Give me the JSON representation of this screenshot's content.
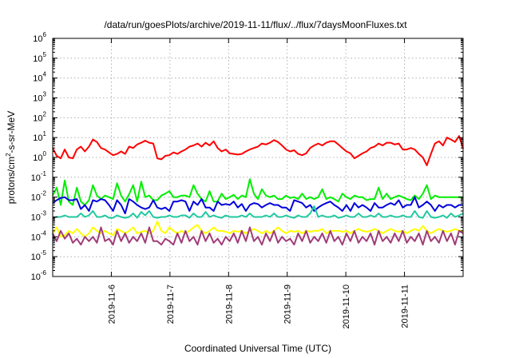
{
  "chart_data": {
    "type": "line",
    "title": "/data/run/goesPlots/archive/2019-11-11/flux/../flux/7daysMoonFluxes.txt",
    "xlabel": "Coordinated Universal Time (UTC)",
    "ylabel_parts": [
      "protons/cm",
      "2",
      "-s-sr-MeV"
    ],
    "yscale": "log",
    "ylim_exponents": [
      -6,
      6
    ],
    "ytick_base": "10",
    "ytick_exponents": [
      "-6",
      "-5",
      "-4",
      "-3",
      "-2",
      "-1",
      "0",
      "1",
      "2",
      "3",
      "4",
      "5",
      "6"
    ],
    "x_start": "2019-11-05T00:00",
    "x_end": "2019-11-12T00:00",
    "xticks": [
      "2019-11-6",
      "2019-11-7",
      "2019-11-8",
      "2019-11-9",
      "2019-11-10",
      "2019-11-11"
    ],
    "grid": true,
    "series": [
      {
        "color": "#ff0000",
        "values": [
          3.0,
          1.2,
          0.9,
          2.5,
          1.0,
          0.9,
          2.5,
          3.5,
          2.0,
          3.5,
          8.0,
          6.0,
          3.0,
          2.5,
          1.8,
          1.3,
          1.5,
          2.0,
          1.5,
          3.5,
          3.0,
          4.5,
          5.5,
          7.0,
          5.5,
          5.0,
          0.9,
          0.8,
          1.2,
          1.3,
          1.8,
          1.5,
          2.0,
          2.5,
          3.5,
          4.0,
          5.0,
          3.5,
          5.5,
          4.0,
          6.5,
          3.0,
          2.0,
          2.5,
          1.6,
          1.5,
          1.4,
          1.5,
          2.0,
          2.5,
          3.0,
          3.5,
          5.0,
          4.5,
          5.5,
          7.5,
          6.0,
          4.0,
          2.5,
          2.0,
          2.3,
          1.5,
          1.3,
          1.6,
          3.0,
          4.0,
          5.0,
          4.0,
          5.5,
          6.5,
          6.5,
          4.5,
          3.0,
          2.0,
          1.6,
          0.9,
          1.2,
          1.6,
          2.0,
          3.0,
          3.5,
          5.0,
          4.0,
          5.5,
          5.5,
          4.5,
          5.0,
          2.5,
          2.5,
          3.0,
          2.5,
          1.5,
          1.0,
          0.4,
          1.5,
          5.0,
          6.5,
          4.0,
          10.0,
          8.0,
          6.0,
          12.0,
          2.8
        ]
      },
      {
        "color": "#00ee00",
        "values": [
          0.012,
          0.03,
          0.004,
          0.07,
          0.006,
          0.004,
          0.03,
          0.006,
          0.004,
          0.007,
          0.04,
          0.012,
          0.008,
          0.012,
          0.01,
          0.008,
          0.05,
          0.012,
          0.006,
          0.014,
          0.04,
          0.006,
          0.06,
          0.01,
          0.012,
          0.007,
          0.007,
          0.012,
          0.015,
          0.02,
          0.01,
          0.01,
          0.012,
          0.012,
          0.01,
          0.04,
          0.015,
          0.008,
          0.006,
          0.02,
          0.006,
          0.006,
          0.015,
          0.008,
          0.01,
          0.013,
          0.008,
          0.012,
          0.01,
          0.08,
          0.015,
          0.008,
          0.025,
          0.012,
          0.01,
          0.012,
          0.008,
          0.008,
          0.012,
          0.009,
          0.01,
          0.008,
          0.015,
          0.008,
          0.01,
          0.008,
          0.01,
          0.025,
          0.008,
          0.01,
          0.008,
          0.006,
          0.015,
          0.01,
          0.008,
          0.012,
          0.01,
          0.01,
          0.007,
          0.008,
          0.008,
          0.03,
          0.008,
          0.015,
          0.008,
          0.01,
          0.012,
          0.01,
          0.008,
          0.007,
          0.012,
          0.008,
          0.015,
          0.04,
          0.008,
          0.012,
          0.01,
          0.01,
          0.01,
          0.01,
          0.01,
          0.01,
          0.01
        ]
      },
      {
        "color": "#0000dd",
        "values": [
          0.005,
          0.007,
          0.009,
          0.01,
          0.007,
          0.007,
          0.008,
          0.0025,
          0.004,
          0.002,
          0.007,
          0.006,
          0.008,
          0.007,
          0.004,
          0.002,
          0.007,
          0.004,
          0.0015,
          0.008,
          0.006,
          0.004,
          0.003,
          0.0025,
          0.003,
          0.007,
          0.003,
          0.0025,
          0.003,
          0.002,
          0.006,
          0.006,
          0.007,
          0.006,
          0.002,
          0.006,
          0.004,
          0.008,
          0.003,
          0.003,
          0.002,
          0.006,
          0.004,
          0.0045,
          0.004,
          0.006,
          0.003,
          0.0045,
          0.002,
          0.004,
          0.005,
          0.0045,
          0.003,
          0.004,
          0.005,
          0.004,
          0.004,
          0.003,
          0.003,
          0.002,
          0.007,
          0.006,
          0.005,
          0.003,
          0.004,
          0.002,
          0.003,
          0.004,
          0.005,
          0.006,
          0.004,
          0.003,
          0.002,
          0.004,
          0.002,
          0.005,
          0.003,
          0.004,
          0.003,
          0.002,
          0.005,
          0.003,
          0.003,
          0.004,
          0.005,
          0.004,
          0.007,
          0.003,
          0.004,
          0.004,
          0.01,
          0.003,
          0.004,
          0.006,
          0.004,
          0.002,
          0.004,
          0.003,
          0.004,
          0.004,
          0.003,
          0.004,
          0.004
        ]
      },
      {
        "color": "#20c8a0",
        "values": [
          0.0009,
          0.001,
          0.001,
          0.0012,
          0.001,
          0.001,
          0.001,
          0.0015,
          0.001,
          0.0012,
          0.002,
          0.001,
          0.001,
          0.0012,
          0.0009,
          0.0009,
          0.0012,
          0.001,
          0.0009,
          0.001,
          0.0015,
          0.0009,
          0.0018,
          0.0012,
          0.002,
          0.001,
          0.0009,
          0.001,
          0.001,
          0.0012,
          0.001,
          0.001,
          0.0012,
          0.0012,
          0.0009,
          0.0015,
          0.001,
          0.001,
          0.0018,
          0.001,
          0.0012,
          0.001,
          0.0009,
          0.0012,
          0.001,
          0.001,
          0.001,
          0.0012,
          0.001,
          0.0015,
          0.001,
          0.001,
          0.001,
          0.0012,
          0.001,
          0.0015,
          0.001,
          0.001,
          0.0012,
          0.001,
          0.0009,
          0.0012,
          0.001,
          0.001,
          0.0015,
          0.0035,
          0.001,
          0.0012,
          0.001,
          0.001,
          0.0012,
          0.0009,
          0.001,
          0.0012,
          0.001,
          0.001,
          0.0015,
          0.001,
          0.001,
          0.0012,
          0.001,
          0.0015,
          0.001,
          0.001,
          0.0012,
          0.001,
          0.001,
          0.0012,
          0.001,
          0.001,
          0.002,
          0.001,
          0.0009,
          0.002,
          0.001,
          0.0009,
          0.001,
          0.0012,
          0.0009,
          0.0015,
          0.001,
          0.0012,
          0.0015
        ]
      },
      {
        "color": "#ffff00",
        "values": [
          0.00015,
          0.0003,
          0.0001,
          0.00012,
          0.0002,
          0.00015,
          0.00025,
          0.00015,
          0.0001,
          0.00015,
          0.0003,
          0.0002,
          0.00015,
          0.0002,
          0.00015,
          0.00012,
          0.00025,
          0.0002,
          0.00015,
          0.0002,
          0.0003,
          0.00015,
          0.00018,
          0.0002,
          0.00015,
          0.0002,
          0.0006,
          0.0002,
          0.00015,
          0.0003,
          0.0002,
          0.00015,
          0.0002,
          0.00015,
          0.0002,
          0.0003,
          0.0004,
          0.0002,
          0.00015,
          0.0002,
          0.0003,
          0.0002,
          0.0002,
          0.00018,
          0.00015,
          0.0002,
          0.00018,
          0.0002,
          0.00015,
          0.0002,
          0.00025,
          0.0002,
          0.00015,
          0.0002,
          0.00015,
          0.0002,
          0.0003,
          0.0002,
          0.00015,
          0.0002,
          0.00018,
          0.0002,
          0.00015,
          0.0002,
          0.00018,
          0.0002,
          0.0002,
          0.00025,
          0.00015,
          0.0002,
          0.0002,
          0.0002,
          0.00018,
          0.0002,
          0.00015,
          0.0002,
          0.00025,
          0.0002,
          0.00018,
          0.0002,
          0.00025,
          0.0002,
          0.00015,
          0.0002,
          0.00025,
          0.0002,
          0.00018,
          0.0002,
          0.00015,
          0.0002,
          0.00025,
          0.0002,
          0.00035,
          0.0002,
          0.00015,
          0.0002,
          0.00025,
          0.0002,
          0.00018,
          0.0002,
          0.00025,
          0.0002,
          0.0002
        ]
      },
      {
        "color": "#a03c78",
        "values": [
          0.00015,
          6e-05,
          0.0002,
          8e-05,
          0.00015,
          5e-05,
          8e-05,
          4e-05,
          0.0001,
          6e-05,
          0.0001,
          5e-05,
          0.0003,
          6e-05,
          8e-05,
          4e-05,
          0.0002,
          6e-05,
          0.00015,
          5e-05,
          0.0001,
          6e-05,
          0.00015,
          5e-05,
          0.0003,
          6e-05,
          6e-05,
          4e-05,
          8e-05,
          6e-05,
          4e-05,
          0.00015,
          5e-05,
          0.0002,
          6e-05,
          0.0001,
          4e-05,
          0.0002,
          6e-05,
          0.00015,
          5e-05,
          8e-05,
          4e-05,
          0.0001,
          6e-05,
          0.00015,
          5e-05,
          0.0002,
          6e-05,
          0.0003,
          6e-05,
          0.0001,
          4e-05,
          0.00015,
          6e-05,
          0.0002,
          5e-05,
          0.0001,
          6e-05,
          8e-05,
          4e-05,
          0.00015,
          6e-05,
          0.0002,
          5e-05,
          0.0001,
          6e-05,
          0.00015,
          5e-05,
          0.0002,
          6e-05,
          0.0001,
          4e-05,
          0.00015,
          6e-05,
          0.0002,
          5e-05,
          0.0001,
          6e-05,
          0.00015,
          4e-05,
          0.0002,
          6e-05,
          0.0001,
          5e-05,
          0.00015,
          6e-05,
          0.0002,
          5e-05,
          0.0001,
          6e-05,
          0.00015,
          4e-05,
          0.0002,
          6e-05,
          0.0001,
          5e-05,
          0.0002,
          6e-05,
          0.00015,
          4e-05,
          0.0002,
          0.00015
        ]
      }
    ]
  }
}
